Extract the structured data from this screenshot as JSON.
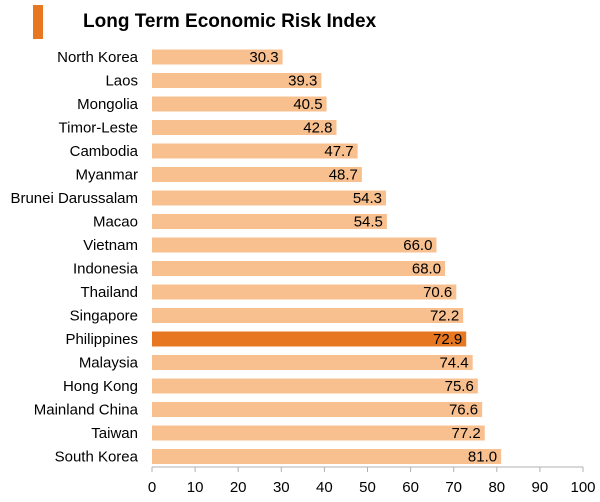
{
  "chart_data": {
    "type": "bar",
    "orientation": "horizontal",
    "title": "Long Term Economic Risk Index",
    "categories": [
      "North Korea",
      "Laos",
      "Mongolia",
      "Timor-Leste",
      "Cambodia",
      "Myanmar",
      "Brunei Darussalam",
      "Macao",
      "Vietnam",
      "Indonesia",
      "Thailand",
      "Singapore",
      "Philippines",
      "Malaysia",
      "Hong Kong",
      "Mainland China",
      "Taiwan",
      "South Korea"
    ],
    "values": [
      30.3,
      39.3,
      40.5,
      42.8,
      47.7,
      48.7,
      54.3,
      54.5,
      66.0,
      68.0,
      70.6,
      72.2,
      72.9,
      74.4,
      75.6,
      76.6,
      77.2,
      81.0
    ],
    "value_labels": [
      "30.3",
      "39.3",
      "40.5",
      "42.8",
      "47.7",
      "48.7",
      "54.3",
      "54.5",
      "66.0",
      "68.0",
      "70.6",
      "72.2",
      "72.9",
      "74.4",
      "75.6",
      "76.6",
      "77.2",
      "81.0"
    ],
    "highlight": "Philippines",
    "xlim": [
      0,
      100
    ],
    "xticks": [
      "0",
      "10",
      "20",
      "30",
      "40",
      "50",
      "60",
      "70",
      "80",
      "90",
      "100"
    ],
    "xlabel": "",
    "ylabel": "",
    "grid": false,
    "colors": {
      "bar": "#f9c08f",
      "highlight": "#e87722",
      "title_marker": "#e87722",
      "axis": "#b0b0b0"
    }
  }
}
